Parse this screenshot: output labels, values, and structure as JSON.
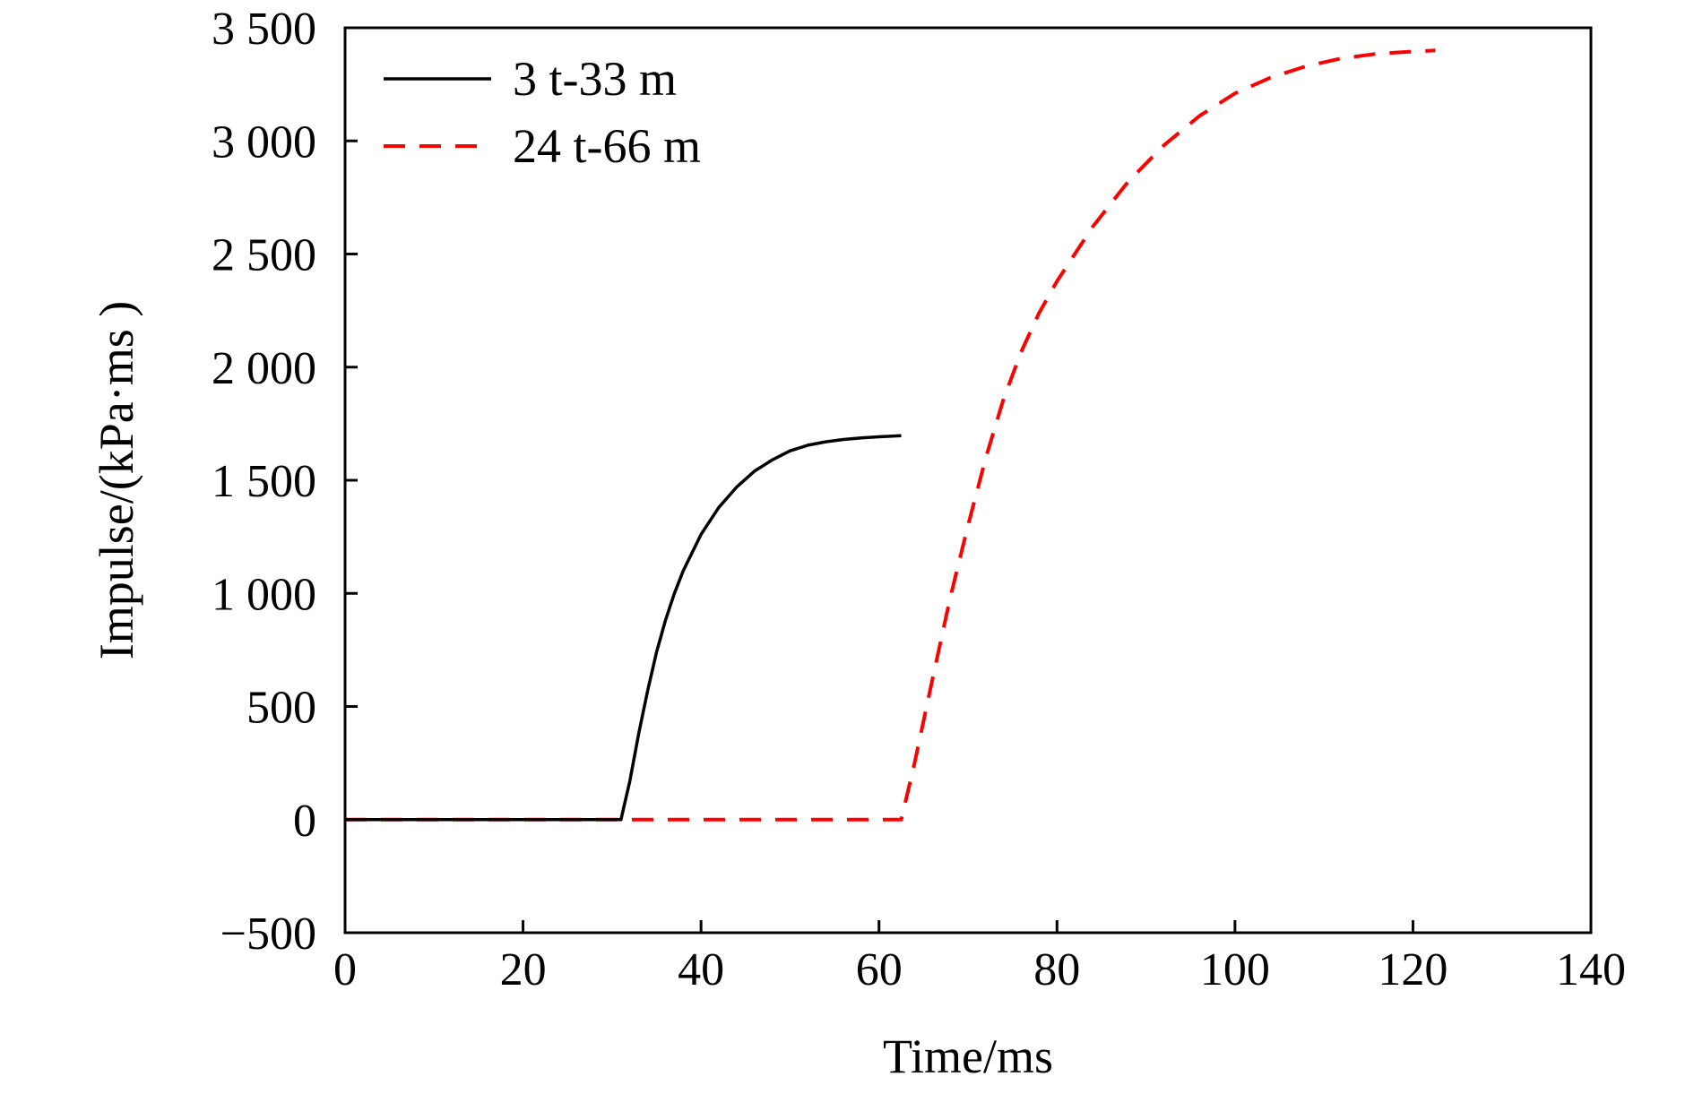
{
  "chart_data": {
    "type": "line",
    "title": "",
    "xlabel": "Time/ms",
    "ylabel": "Impulse/(kPa·ms )",
    "xlim": [
      0,
      140
    ],
    "ylim": [
      -500,
      3500
    ],
    "xticks": [
      0,
      20,
      40,
      60,
      80,
      100,
      120,
      140
    ],
    "yticks": [
      -500,
      0,
      500,
      1000,
      1500,
      2000,
      2500,
      3000,
      3500
    ],
    "xtick_labels": [
      "0",
      "20",
      "40",
      "60",
      "80",
      "100",
      "120",
      "140"
    ],
    "ytick_labels": [
      "−500",
      "0",
      "500",
      "1 000",
      "1 500",
      "2 000",
      "2 500",
      "3 000",
      "3 500"
    ],
    "grid": false,
    "legend_position": "top-left",
    "series": [
      {
        "name": "3 t-33 m",
        "color": "#000000",
        "style": "solid",
        "x": [
          0,
          10,
          20,
          31,
          32,
          33,
          34,
          35,
          36,
          37,
          38,
          40,
          42,
          44,
          46,
          48,
          50,
          52,
          54,
          56,
          58,
          60,
          62.5
        ],
        "y": [
          0,
          0,
          0,
          0,
          170,
          380,
          570,
          740,
          880,
          1000,
          1100,
          1260,
          1380,
          1470,
          1540,
          1590,
          1630,
          1655,
          1670,
          1680,
          1687,
          1692,
          1697
        ]
      },
      {
        "name": "24 t-66 m",
        "color": "#ff0000",
        "style": "dashed",
        "x": [
          0,
          20,
          40,
          60,
          62.5,
          64,
          66,
          68,
          70,
          72,
          74,
          76,
          78,
          80,
          84,
          88,
          92,
          96,
          100,
          104,
          108,
          112,
          116,
          120,
          122.5
        ],
        "y": [
          0,
          0,
          0,
          0,
          0,
          250,
          620,
          980,
          1300,
          1600,
          1860,
          2070,
          2240,
          2380,
          2620,
          2820,
          2980,
          3110,
          3210,
          3280,
          3330,
          3365,
          3385,
          3395,
          3400
        ]
      }
    ]
  }
}
